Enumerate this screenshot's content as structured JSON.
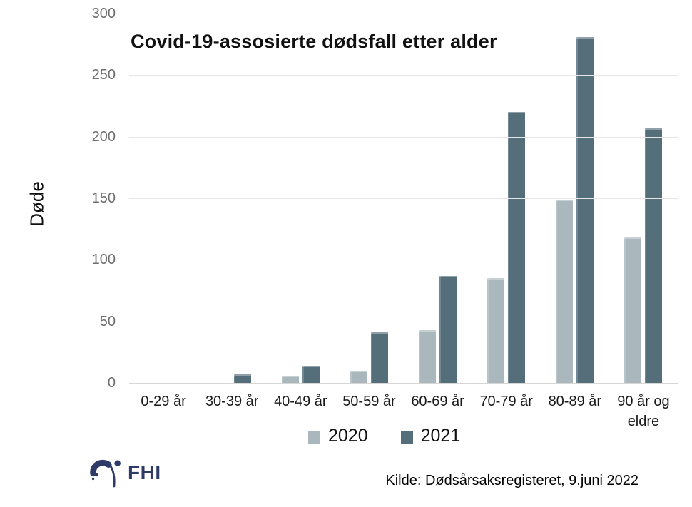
{
  "title": "Covid-19-assosierte dødsfall etter alder",
  "chart_data": {
    "type": "bar",
    "title": "Covid-19-assosierte dødsfall etter alder",
    "xlabel": "",
    "ylabel": "Døde",
    "categories": [
      "0-29 år",
      "30-39 år",
      "40-49 år",
      "50-59 år",
      "60-69 år",
      "70-79 år",
      "80-89 år",
      "90 år og eldre"
    ],
    "series": [
      {
        "name": "2020",
        "color": "#aab8be",
        "values": [
          0,
          0,
          6,
          10,
          43,
          85,
          149,
          118
        ]
      },
      {
        "name": "2021",
        "color": "#546e7a",
        "values": [
          0,
          7,
          14,
          41,
          87,
          220,
          281,
          207
        ]
      }
    ],
    "ylim": [
      0,
      300
    ],
    "yticks": [
      0,
      50,
      100,
      150,
      200,
      250,
      300
    ],
    "grid": true,
    "legend_position": "bottom"
  },
  "footer": {
    "logo_text": "FHI",
    "source": "Kilde: Dødsårsaksregisteret, 9.juni 2022"
  },
  "colors": {
    "series_2020": "#aab8be",
    "series_2021": "#546e7a",
    "gridline": "#e6e6e6",
    "axis_line": "#d6d6d6",
    "tick_text": "#6e6e6e",
    "logo": "#2e3a67"
  }
}
